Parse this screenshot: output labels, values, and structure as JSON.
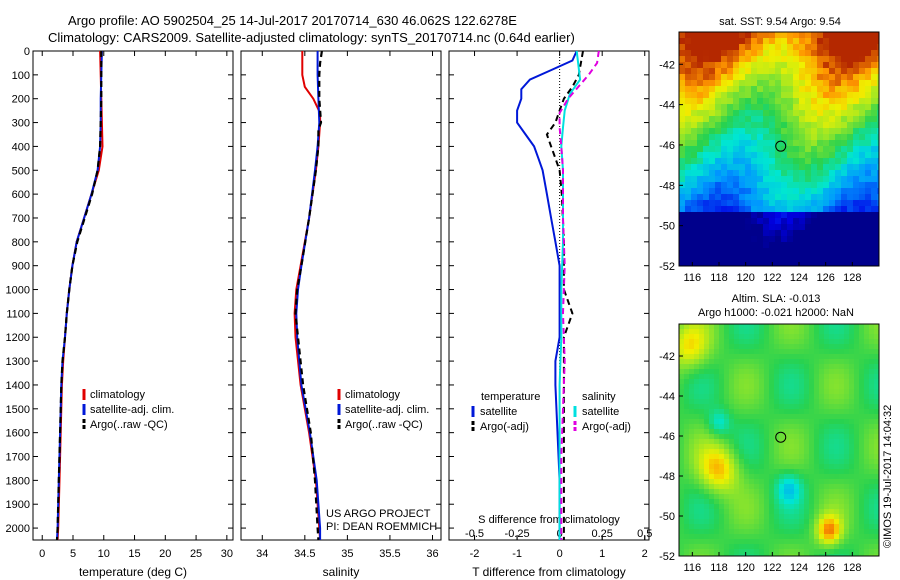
{
  "header": {
    "line1": "Argo profile: AO 5902504_25 14-Jul-2017 20170714_630 46.062S 122.6278E",
    "line2": "Climatology: CARS2009. Satellite-adjusted climatology: synTS_20170714.nc (0.64d earlier)"
  },
  "colors": {
    "climatology": "#e00000",
    "satellite": "#0018d8",
    "argo": "#000000",
    "sal_satellite": "#00e0e0",
    "sal_argo": "#e000e0"
  },
  "panel_notes": {
    "project": "US ARGO PROJECT",
    "pi": "PI: DEAN ROEMMICH"
  },
  "chart_data": [
    {
      "type": "line",
      "panel": "temperature",
      "xlabel": "temperature (deg C)",
      "ylabel": "",
      "xlim": [
        -1.5,
        31
      ],
      "ylim": [
        2050,
        0
      ],
      "xticks": [
        0,
        5,
        10,
        15,
        20,
        25,
        30
      ],
      "yticks": [
        0,
        100,
        200,
        300,
        400,
        500,
        600,
        700,
        800,
        900,
        1000,
        1100,
        1200,
        1300,
        1400,
        1500,
        1600,
        1700,
        1800,
        1900,
        2000
      ],
      "legend": [
        "climatology",
        "satellite-adj. clim.",
        "Argo(..raw -QC)"
      ],
      "series": [
        {
          "name": "climatology",
          "depth": [
            0,
            100,
            200,
            300,
            400,
            500,
            600,
            700,
            800,
            900,
            1000,
            1100,
            1200,
            1300,
            1400,
            1600,
            1800,
            2000,
            2050
          ],
          "values": [
            9.4,
            9.5,
            9.6,
            9.7,
            9.8,
            9.2,
            8.0,
            6.8,
            5.6,
            4.9,
            4.4,
            4.0,
            3.7,
            3.4,
            3.2,
            3.0,
            2.8,
            2.6,
            2.5
          ]
        },
        {
          "name": "satellite-adj. clim.",
          "depth": [
            0,
            100,
            200,
            300,
            400,
            500,
            600,
            700,
            800,
            900,
            1000,
            1100,
            1200,
            1300,
            1400,
            1600,
            1800,
            2000,
            2050
          ],
          "values": [
            9.7,
            9.6,
            9.5,
            9.5,
            9.4,
            9.0,
            8.0,
            6.8,
            5.6,
            4.9,
            4.4,
            4.0,
            3.7,
            3.3,
            3.1,
            2.9,
            2.7,
            2.5,
            2.4
          ]
        },
        {
          "name": "Argo(..raw -QC)",
          "depth": [
            0,
            100,
            200,
            300,
            400,
            500,
            600,
            700,
            800,
            900,
            1000,
            1100,
            1200,
            1300,
            1400,
            1600,
            1800,
            2000,
            2050
          ],
          "values": [
            9.6,
            9.6,
            9.6,
            9.5,
            9.4,
            9.0,
            8.1,
            6.9,
            5.7,
            4.9,
            4.4,
            4.0,
            3.7,
            3.3,
            3.1,
            2.9,
            2.7,
            2.5,
            2.4
          ]
        }
      ]
    },
    {
      "type": "line",
      "panel": "salinity",
      "xlabel": "salinity",
      "xlim": [
        33.75,
        36.1
      ],
      "ylim": [
        2050,
        0
      ],
      "xticks": [
        34,
        34.5,
        35,
        35.5,
        36
      ],
      "legend": [
        "climatology",
        "satellite-adj. clim.",
        "Argo(..raw -QC)"
      ],
      "series": [
        {
          "name": "climatology",
          "depth": [
            0,
            100,
            150,
            200,
            260,
            300,
            400,
            500,
            700,
            900,
            1000,
            1100,
            1200,
            1400,
            1600,
            1800,
            2000,
            2050
          ],
          "values": [
            34.47,
            34.47,
            34.5,
            34.6,
            34.68,
            34.68,
            34.66,
            34.63,
            34.55,
            34.45,
            34.4,
            34.38,
            34.39,
            34.45,
            34.55,
            34.63,
            34.67,
            34.68
          ]
        },
        {
          "name": "satellite-adj. clim.",
          "depth": [
            0,
            100,
            200,
            300,
            400,
            500,
            700,
            900,
            1000,
            1100,
            1200,
            1400,
            1600,
            1800,
            2000,
            2050
          ],
          "values": [
            34.65,
            34.65,
            34.66,
            34.67,
            34.65,
            34.62,
            34.55,
            34.46,
            34.42,
            34.4,
            34.41,
            34.46,
            34.56,
            34.64,
            34.68,
            34.68
          ]
        },
        {
          "name": "Argo(..raw -QC)",
          "depth": [
            0,
            50,
            100,
            200,
            300,
            330,
            400,
            500,
            700,
            900,
            1000,
            1100,
            1200,
            1400,
            1600,
            1800,
            2000,
            2050
          ],
          "values": [
            34.7,
            34.68,
            34.67,
            34.67,
            34.69,
            34.66,
            34.66,
            34.63,
            34.55,
            34.46,
            34.41,
            34.39,
            34.42,
            34.48,
            34.57,
            34.62,
            34.65,
            34.66
          ]
        }
      ]
    },
    {
      "type": "line",
      "panel": "difference",
      "xlabel": "T difference from climatology",
      "xlabel2": "S difference from climatology",
      "xlim": [
        -2.6,
        2.1
      ],
      "xlim_salinity": [
        -0.65,
        0.525
      ],
      "ylim": [
        2050,
        0
      ],
      "xticks": [
        -2,
        -1,
        0,
        1,
        2
      ],
      "xtick_labels": [
        "-2",
        "-1",
        "0",
        "1",
        "2"
      ],
      "xticks_salinity": [
        -0.5,
        -0.25,
        0,
        0.25,
        0.5
      ],
      "xtick_labels_salinity": [
        "-0.5",
        "-0.25",
        "0",
        "0.25",
        "0.5"
      ],
      "legend_headers": [
        "temperature",
        "salinity"
      ],
      "legend": [
        "satellite",
        "Argo(-adj)",
        "satellite",
        "Argo(-adj)"
      ],
      "series": [
        {
          "name": "satellite",
          "variable": "temperature",
          "depth": [
            0,
            40,
            80,
            120,
            160,
            200,
            250,
            300,
            350,
            400,
            450,
            500,
            600,
            700,
            800,
            900,
            1000,
            1100,
            1200,
            1300,
            1400,
            1600,
            1800,
            2000,
            2050
          ],
          "values": [
            0.4,
            0.3,
            -0.2,
            -0.7,
            -0.9,
            -0.9,
            -1.0,
            -1.0,
            -0.8,
            -0.6,
            -0.5,
            -0.4,
            -0.3,
            -0.2,
            -0.1,
            0.0,
            0.0,
            0.0,
            0.0,
            -0.1,
            -0.1,
            -0.05,
            0.0,
            0.0,
            0.0
          ]
        },
        {
          "name": "Argo(-adj)",
          "variable": "temperature",
          "depth": [
            0,
            50,
            100,
            150,
            200,
            250,
            300,
            350,
            400,
            450,
            500,
            600,
            800,
            1000,
            1100,
            1150,
            1200,
            1300,
            1500,
            1700,
            1900,
            2050
          ],
          "values": [
            0.55,
            0.5,
            0.45,
            0.3,
            0.1,
            0.0,
            -0.1,
            -0.3,
            -0.2,
            -0.1,
            0.0,
            0.05,
            0.1,
            0.1,
            0.3,
            0.2,
            0.1,
            0.1,
            0.1,
            0.1,
            0.1,
            0.1
          ]
        },
        {
          "name": "satellite",
          "variable": "salinity",
          "depth": [
            0,
            60,
            120,
            180,
            250,
            320,
            400,
            500,
            600,
            800,
            1000,
            1200,
            1400,
            1600,
            1800,
            2000,
            2050
          ],
          "values": [
            0.1,
            0.11,
            0.12,
            0.06,
            0.03,
            0.02,
            0.01,
            0.02,
            0.02,
            0.02,
            0.01,
            0.01,
            0.0,
            0.0,
            0.0,
            0.0,
            0.0
          ]
        },
        {
          "name": "Argo(-adj)",
          "variable": "salinity",
          "depth": [
            0,
            50,
            100,
            200,
            260,
            320,
            400,
            500,
            700,
            900,
            1100,
            1300,
            1500,
            1700,
            1900,
            2050
          ],
          "values": [
            0.23,
            0.22,
            0.17,
            0.05,
            0.0,
            0.0,
            0.01,
            0.02,
            0.02,
            0.03,
            0.02,
            0.03,
            0.02,
            0.01,
            0.01,
            0.01
          ]
        }
      ]
    },
    {
      "type": "heatmap",
      "panel": "sst_map",
      "title": "sat. SST: 9.54 Argo: 9.54",
      "xticks": [
        116,
        118,
        120,
        122,
        124,
        126,
        128
      ],
      "yticks": [
        -42,
        -44,
        -46,
        -48,
        -50,
        -52
      ],
      "xlim": [
        115,
        130
      ],
      "ylim": [
        -52,
        -40.4
      ],
      "marker": {
        "lon": 122.63,
        "lat": -46.06
      }
    },
    {
      "type": "heatmap",
      "panel": "sla_map",
      "title": "Altim. SLA: -0.013",
      "subtitle": "Argo h1000: -0.021 h2000: NaN",
      "xticks": [
        116,
        118,
        120,
        122,
        124,
        126,
        128
      ],
      "yticks": [
        -42,
        -44,
        -46,
        -48,
        -50,
        -52
      ],
      "xlim": [
        115,
        130
      ],
      "ylim": [
        -52,
        -40.4
      ],
      "marker": {
        "lon": 122.63,
        "lat": -46.06
      }
    }
  ],
  "watermark": "©IMOS 19-Jul-2017 14:04:32"
}
